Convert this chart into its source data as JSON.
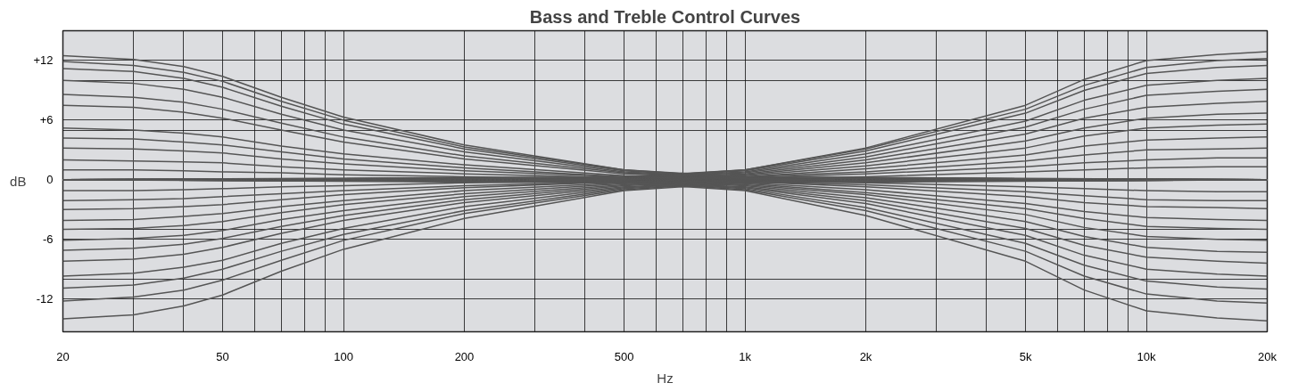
{
  "chart_data": {
    "type": "line",
    "title": "Bass and Treble Control Curves",
    "xlabel": "Hz",
    "ylabel": "dB",
    "log": "x",
    "grid": true,
    "line_style": "solid",
    "marker": "none",
    "xlim": [
      20,
      20000
    ],
    "ylim": [
      -15.3,
      15
    ],
    "xticks": [
      20,
      {
        "value": 30,
        "label": null
      },
      {
        "value": 40,
        "label": null
      },
      50,
      {
        "value": 60,
        "label": null
      },
      {
        "value": 70,
        "label": null
      },
      {
        "value": 80,
        "label": null
      },
      {
        "value": 90,
        "label": null
      },
      100,
      200,
      {
        "value": 300,
        "label": null
      },
      {
        "value": 400,
        "label": null
      },
      500,
      {
        "value": 600,
        "label": null
      },
      {
        "value": 700,
        "label": null
      },
      {
        "value": 800,
        "label": null
      },
      {
        "value": 900,
        "label": null
      },
      {
        "value": 1000,
        "label": "1k"
      },
      {
        "value": 2000,
        "label": "2k"
      },
      {
        "value": 3000,
        "label": null
      },
      {
        "value": 4000,
        "label": null
      },
      {
        "value": 5000,
        "label": "5k"
      },
      {
        "value": 6000,
        "label": null
      },
      {
        "value": 7000,
        "label": null
      },
      {
        "value": 8000,
        "label": null
      },
      {
        "value": 9000,
        "label": null
      },
      {
        "value": 10000,
        "label": "10k"
      },
      {
        "value": 20000,
        "label": "20k"
      }
    ],
    "yticks": [
      {
        "value": 12,
        "label": "+12"
      },
      {
        "value": 10,
        "label": null
      },
      {
        "value": 6,
        "label": "+6"
      },
      {
        "value": 5,
        "label": null
      },
      0,
      {
        "value": -5,
        "label": null
      },
      -6,
      {
        "value": -10,
        "label": null
      },
      -12
    ],
    "series": [
      {
        "color": "#555555",
        "x": [
          20,
          30,
          40,
          50,
          70,
          100,
          200,
          500,
          1000,
          20000
        ],
        "values": [
          12.5,
          12.1,
          11.4,
          10.4,
          8.3,
          6.3,
          3.5,
          1.0,
          0.3,
          0
        ]
      },
      {
        "color": "#555555",
        "x": [
          20,
          30,
          40,
          50,
          70,
          100,
          200,
          500,
          1000,
          20000
        ],
        "values": [
          11.9,
          11.5,
          10.8,
          9.9,
          7.9,
          6.0,
          3.3,
          1.0,
          0.2,
          0
        ]
      },
      {
        "color": "#555555",
        "x": [
          20,
          30,
          40,
          50,
          70,
          100,
          200,
          500,
          1000,
          20000
        ],
        "values": [
          11.2,
          10.9,
          10.2,
          9.3,
          7.4,
          5.6,
          3.1,
          0.9,
          0.2,
          0
        ]
      },
      {
        "color": "#555555",
        "x": [
          20,
          30,
          40,
          50,
          70,
          100,
          200,
          500,
          1000,
          20000
        ],
        "values": [
          10.0,
          9.7,
          9.1,
          8.3,
          6.6,
          5.0,
          2.8,
          0.8,
          0.2,
          0
        ]
      },
      {
        "color": "#555555",
        "x": [
          20,
          30,
          40,
          50,
          70,
          100,
          200,
          500,
          1000,
          20000
        ],
        "values": [
          8.6,
          8.3,
          7.8,
          7.1,
          5.7,
          4.3,
          2.4,
          0.7,
          0.2,
          0
        ]
      },
      {
        "color": "#555555",
        "x": [
          20,
          30,
          40,
          50,
          70,
          100,
          200,
          500,
          1000,
          20000
        ],
        "values": [
          7.5,
          7.3,
          6.8,
          6.2,
          5.0,
          3.8,
          2.1,
          0.6,
          0.2,
          0
        ]
      },
      {
        "color": "#555555",
        "x": [
          20,
          30,
          40,
          50,
          70,
          100,
          200,
          500,
          1000,
          20000
        ],
        "values": [
          5.2,
          5.0,
          4.7,
          4.3,
          3.4,
          2.6,
          1.5,
          0.4,
          0.1,
          0
        ]
      },
      {
        "color": "#555555",
        "x": [
          20,
          30,
          40,
          50,
          70,
          100,
          200,
          500,
          1000,
          20000
        ],
        "values": [
          4.2,
          4.1,
          3.8,
          3.5,
          2.8,
          2.1,
          1.2,
          0.3,
          0.1,
          0
        ]
      },
      {
        "color": "#555555",
        "x": [
          20,
          30,
          40,
          50,
          70,
          100,
          200,
          500,
          1000,
          20000
        ],
        "values": [
          3.2,
          3.1,
          2.9,
          2.7,
          2.1,
          1.6,
          0.9,
          0.3,
          0.1,
          0
        ]
      },
      {
        "color": "#555555",
        "x": [
          20,
          30,
          40,
          50,
          70,
          100,
          200,
          500,
          1000,
          20000
        ],
        "values": [
          2.0,
          1.9,
          1.8,
          1.7,
          1.3,
          1.0,
          0.6,
          0.2,
          0,
          0
        ]
      },
      {
        "color": "#555555",
        "x": [
          20,
          30,
          40,
          50,
          70,
          100,
          200,
          500,
          1000,
          20000
        ],
        "values": [
          1.0,
          1.0,
          0.9,
          0.8,
          0.7,
          0.5,
          0.3,
          0.1,
          0,
          0
        ]
      },
      {
        "color": "#555555",
        "x": [
          20,
          30,
          40,
          50,
          70,
          100,
          200,
          500,
          1000,
          20000
        ],
        "values": [
          -1.1,
          -1.1,
          -1.0,
          -0.9,
          -0.7,
          -0.6,
          -0.3,
          -0.1,
          0,
          0
        ]
      },
      {
        "color": "#555555",
        "x": [
          20,
          30,
          40,
          50,
          70,
          100,
          200,
          500,
          1000,
          20000
        ],
        "values": [
          -2.1,
          -2.0,
          -1.9,
          -1.7,
          -1.4,
          -1.1,
          -0.6,
          -0.2,
          0,
          0
        ]
      },
      {
        "color": "#555555",
        "x": [
          20,
          30,
          40,
          50,
          70,
          100,
          200,
          500,
          1000,
          20000
        ],
        "values": [
          -3.0,
          -2.9,
          -2.7,
          -2.5,
          -2.0,
          -1.5,
          -0.8,
          -0.2,
          -0.1,
          0
        ]
      },
      {
        "color": "#555555",
        "x": [
          20,
          30,
          40,
          50,
          70,
          100,
          200,
          500,
          1000,
          20000
        ],
        "values": [
          -4.1,
          -4.0,
          -3.7,
          -3.4,
          -2.7,
          -2.1,
          -1.1,
          -0.3,
          -0.1,
          0
        ]
      },
      {
        "color": "#555555",
        "x": [
          20,
          30,
          40,
          50,
          70,
          100,
          200,
          500,
          1000,
          20000
        ],
        "values": [
          -5.0,
          -4.9,
          -4.6,
          -4.2,
          -3.3,
          -2.5,
          -1.4,
          -0.4,
          -0.1,
          0
        ]
      },
      {
        "color": "#555555",
        "x": [
          20,
          30,
          40,
          50,
          70,
          100,
          200,
          500,
          1000,
          20000
        ],
        "values": [
          -6.1,
          -5.9,
          -5.6,
          -5.1,
          -4.0,
          -3.1,
          -1.7,
          -0.5,
          -0.1,
          0
        ]
      },
      {
        "color": "#555555",
        "x": [
          20,
          30,
          40,
          50,
          70,
          100,
          200,
          500,
          1000,
          20000
        ],
        "values": [
          -7.1,
          -6.9,
          -6.5,
          -5.9,
          -4.7,
          -3.6,
          -2.0,
          -0.6,
          -0.1,
          0
        ]
      },
      {
        "color": "#555555",
        "x": [
          20,
          30,
          40,
          50,
          70,
          100,
          200,
          500,
          1000,
          20000
        ],
        "values": [
          -8.2,
          -8.0,
          -7.5,
          -6.8,
          -5.4,
          -4.1,
          -2.3,
          -0.7,
          -0.2,
          0
        ]
      },
      {
        "color": "#555555",
        "x": [
          20,
          30,
          40,
          50,
          70,
          100,
          200,
          500,
          1000,
          20000
        ],
        "values": [
          -9.7,
          -9.4,
          -8.8,
          -8.1,
          -6.4,
          -4.9,
          -2.7,
          -0.8,
          -0.2,
          0
        ]
      },
      {
        "color": "#555555",
        "x": [
          20,
          30,
          40,
          50,
          70,
          100,
          200,
          500,
          1000,
          20000
        ],
        "values": [
          -10.9,
          -10.6,
          -9.9,
          -9.0,
          -7.2,
          -5.5,
          -3.1,
          -0.9,
          -0.2,
          0
        ]
      },
      {
        "color": "#555555",
        "x": [
          20,
          30,
          40,
          50,
          70,
          100,
          200,
          500,
          1000,
          20000
        ],
        "values": [
          -12.2,
          -11.8,
          -11.1,
          -10.1,
          -8.1,
          -6.1,
          -3.4,
          -1.0,
          -0.2,
          0
        ]
      },
      {
        "color": "#555555",
        "x": [
          20,
          30,
          40,
          50,
          70,
          100,
          200,
          500,
          1000,
          20000
        ],
        "values": [
          -14.0,
          -13.6,
          -12.7,
          -11.6,
          -9.2,
          -7.0,
          -3.9,
          -1.1,
          -0.3,
          0
        ]
      },
      {
        "color": "#555555",
        "x": [
          20,
          500,
          1000,
          2000,
          5000,
          7000,
          10000,
          15000,
          20000
        ],
        "values": [
          0,
          0.3,
          1.0,
          3.2,
          7.5,
          10.1,
          12.0,
          12.6,
          12.9
        ]
      },
      {
        "color": "#555555",
        "x": [
          20,
          500,
          1000,
          2000,
          5000,
          7000,
          10000,
          15000,
          20000
        ],
        "values": [
          0,
          0.2,
          1.0,
          3.1,
          7.1,
          9.5,
          11.3,
          12.0,
          12.2
        ]
      },
      {
        "color": "#555555",
        "x": [
          20,
          500,
          1000,
          2000,
          5000,
          7000,
          10000,
          15000,
          20000
        ],
        "values": [
          0,
          0.2,
          0.9,
          2.9,
          6.7,
          9.0,
          10.7,
          11.3,
          11.5
        ]
      },
      {
        "color": "#555555",
        "x": [
          20,
          500,
          1000,
          2000,
          5000,
          7000,
          10000,
          15000,
          20000
        ],
        "values": [
          0,
          0.2,
          0.8,
          2.6,
          5.9,
          8.0,
          9.5,
          10.0,
          10.2
        ]
      },
      {
        "color": "#555555",
        "x": [
          20,
          500,
          1000,
          2000,
          5000,
          7000,
          10000,
          15000,
          20000
        ],
        "values": [
          0,
          0.2,
          0.7,
          2.3,
          5.3,
          7.1,
          8.5,
          8.9,
          9.1
        ]
      },
      {
        "color": "#555555",
        "x": [
          20,
          500,
          1000,
          2000,
          5000,
          7000,
          10000,
          15000,
          20000
        ],
        "values": [
          0,
          0.2,
          0.6,
          2.0,
          4.6,
          6.2,
          7.3,
          7.7,
          7.9
        ]
      },
      {
        "color": "#555555",
        "x": [
          20,
          500,
          1000,
          2000,
          5000,
          7000,
          10000,
          15000,
          20000
        ],
        "values": [
          0,
          0.1,
          0.5,
          1.7,
          3.9,
          5.2,
          6.2,
          6.6,
          6.7
        ]
      },
      {
        "color": "#555555",
        "x": [
          20,
          500,
          1000,
          2000,
          5000,
          7000,
          10000,
          15000,
          20000
        ],
        "values": [
          0,
          0.1,
          0.4,
          1.4,
          3.2,
          4.4,
          5.2,
          5.5,
          5.6
        ]
      },
      {
        "color": "#555555",
        "x": [
          20,
          500,
          1000,
          2000,
          5000,
          7000,
          10000,
          15000,
          20000
        ],
        "values": [
          0,
          0.1,
          0.3,
          1.1,
          2.5,
          3.4,
          4.0,
          4.2,
          4.3
        ]
      },
      {
        "color": "#555555",
        "x": [
          20,
          500,
          1000,
          2000,
          5000,
          7000,
          10000,
          15000,
          20000
        ],
        "values": [
          0,
          0.1,
          0.3,
          0.8,
          1.9,
          2.5,
          3.0,
          3.1,
          3.2
        ]
      },
      {
        "color": "#555555",
        "x": [
          20,
          500,
          1000,
          2000,
          5000,
          7000,
          10000,
          15000,
          20000
        ],
        "values": [
          0,
          0,
          0.2,
          0.6,
          1.3,
          1.7,
          2.0,
          2.2,
          2.2
        ]
      },
      {
        "color": "#555555",
        "x": [
          20,
          500,
          1000,
          2000,
          5000,
          7000,
          10000,
          15000,
          20000
        ],
        "values": [
          0,
          0,
          0.1,
          0.3,
          0.8,
          1.0,
          1.2,
          1.3,
          1.3
        ]
      },
      {
        "color": "#555555",
        "x": [
          20,
          500,
          1000,
          2000,
          5000,
          7000,
          10000,
          15000,
          20000
        ],
        "values": [
          0,
          0,
          -0.1,
          -0.3,
          -0.7,
          -0.9,
          -1.1,
          -1.2,
          -1.2
        ]
      },
      {
        "color": "#555555",
        "x": [
          20,
          500,
          1000,
          2000,
          5000,
          7000,
          10000,
          15000,
          20000
        ],
        "values": [
          0,
          0,
          -0.2,
          -0.5,
          -1.2,
          -1.6,
          -2.0,
          -2.1,
          -2.1
        ]
      },
      {
        "color": "#555555",
        "x": [
          20,
          500,
          1000,
          2000,
          5000,
          7000,
          10000,
          15000,
          20000
        ],
        "values": [
          0,
          -0.1,
          -0.2,
          -0.7,
          -1.7,
          -2.3,
          -2.7,
          -2.8,
          -2.9
        ]
      },
      {
        "color": "#555555",
        "x": [
          20,
          500,
          1000,
          2000,
          5000,
          7000,
          10000,
          15000,
          20000
        ],
        "values": [
          0,
          -0.1,
          -0.3,
          -1.0,
          -2.4,
          -3.2,
          -3.8,
          -4.0,
          -4.1
        ]
      },
      {
        "color": "#555555",
        "x": [
          20,
          500,
          1000,
          2000,
          5000,
          7000,
          10000,
          15000,
          20000
        ],
        "values": [
          0,
          -0.1,
          -0.4,
          -1.3,
          -2.9,
          -3.9,
          -4.7,
          -4.9,
          -5.0
        ]
      },
      {
        "color": "#555555",
        "x": [
          20,
          500,
          1000,
          2000,
          5000,
          7000,
          10000,
          15000,
          20000
        ],
        "values": [
          0,
          -0.1,
          -0.5,
          -1.5,
          -3.5,
          -4.8,
          -5.7,
          -6.0,
          -6.1
        ]
      },
      {
        "color": "#555555",
        "x": [
          20,
          500,
          1000,
          2000,
          5000,
          7000,
          10000,
          15000,
          20000
        ],
        "values": [
          0,
          -0.1,
          -0.6,
          -1.8,
          -4.2,
          -5.7,
          -6.8,
          -7.2,
          -7.3
        ]
      },
      {
        "color": "#555555",
        "x": [
          20,
          500,
          1000,
          2000,
          5000,
          7000,
          10000,
          15000,
          20000
        ],
        "values": [
          0,
          -0.2,
          -0.7,
          -2.1,
          -4.9,
          -6.6,
          -7.8,
          -8.2,
          -8.4
        ]
      },
      {
        "color": "#555555",
        "x": [
          20,
          500,
          1000,
          2000,
          5000,
          7000,
          10000,
          15000,
          20000
        ],
        "values": [
          0,
          -0.2,
          -0.8,
          -2.4,
          -5.6,
          -7.6,
          -9.0,
          -9.5,
          -9.7
        ]
      },
      {
        "color": "#555555",
        "x": [
          20,
          500,
          1000,
          2000,
          5000,
          7000,
          10000,
          15000,
          20000
        ],
        "values": [
          0,
          -0.2,
          -0.9,
          -2.8,
          -6.4,
          -8.6,
          -10.2,
          -10.8,
          -11.0
        ]
      },
      {
        "color": "#555555",
        "x": [
          20,
          500,
          1000,
          2000,
          5000,
          7000,
          10000,
          15000,
          20000
        ],
        "values": [
          0,
          -0.2,
          -1.0,
          -3.1,
          -7.2,
          -9.7,
          -11.5,
          -12.2,
          -12.4
        ]
      },
      {
        "color": "#555555",
        "x": [
          20,
          500,
          1000,
          2000,
          5000,
          7000,
          10000,
          15000,
          20000
        ],
        "values": [
          0,
          -0.3,
          -1.1,
          -3.6,
          -8.2,
          -11.1,
          -13.2,
          -13.9,
          -14.2
        ]
      }
    ]
  }
}
